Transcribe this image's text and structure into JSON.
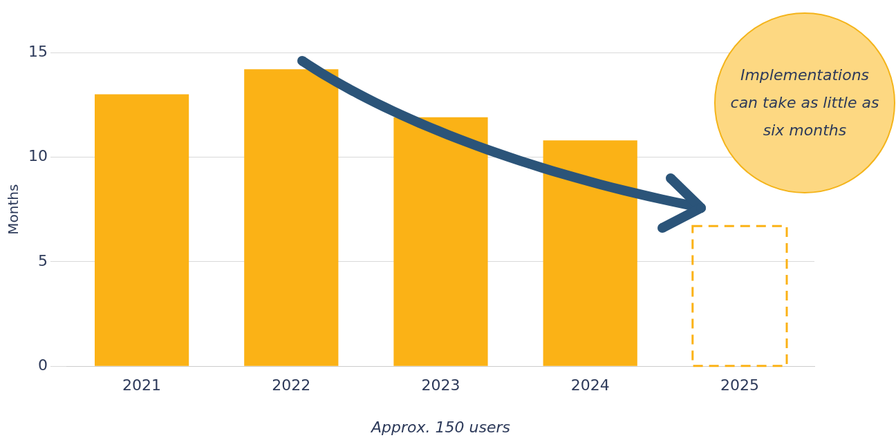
{
  "chart_data": {
    "type": "bar",
    "xlabel": "Approx. 150 users",
    "ylabel": "Months",
    "categories": [
      "2021",
      "2022",
      "2023",
      "2024",
      "2025"
    ],
    "series": [
      {
        "color": "#fbb216",
        "values": [
          13.0,
          14.2,
          11.9,
          10.8,
          null
        ]
      },
      {
        "color": "#fbb216",
        "values": [
          null,
          null,
          null,
          null,
          6.7
        ],
        "line_style": "dashed"
      }
    ],
    "ylim": [
      0,
      15
    ],
    "yticks": [
      0,
      5,
      10,
      15
    ],
    "grid": "y",
    "legend": false,
    "annotations": [
      "Implementations can take as little as six months"
    ]
  }
}
